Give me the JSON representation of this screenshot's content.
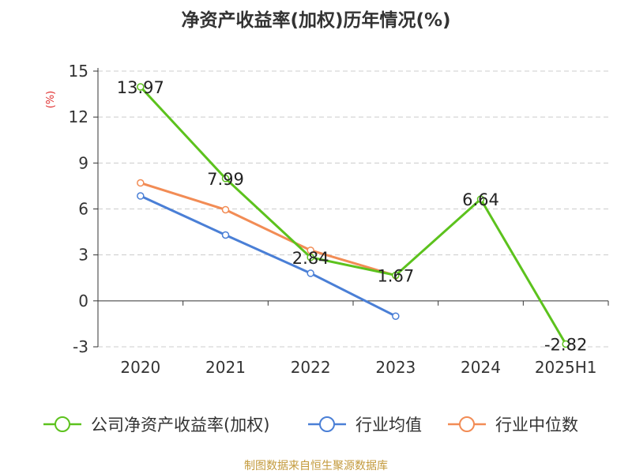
{
  "chart_data": {
    "type": "line",
    "title": "净资产收益率(加权)历年情况(%)",
    "ylabel": "(%)",
    "categories": [
      "2020",
      "2021",
      "2022",
      "2023",
      "2024",
      "2025H1"
    ],
    "yticks": [
      "15",
      "12",
      "9",
      "6",
      "3",
      "0",
      "-3"
    ],
    "ylim": [
      -3,
      15
    ],
    "grid": true,
    "legend_position": "bottom",
    "series": [
      {
        "name": "公司净资产收益率(加权)",
        "color": "#5cc21d",
        "values": [
          13.97,
          7.99,
          2.84,
          1.67,
          6.64,
          -2.82
        ],
        "labels": [
          "13.97",
          "7.99",
          "2.84",
          "1.67",
          "6.64",
          "-2.82"
        ]
      },
      {
        "name": "行业均值",
        "color": "#4a7fd6",
        "values": [
          6.85,
          4.3,
          1.8,
          -1.0,
          null,
          null
        ]
      },
      {
        "name": "行业中位数",
        "color": "#f28c55",
        "values": [
          7.7,
          5.95,
          3.3,
          1.65,
          null,
          null
        ]
      }
    ],
    "source": "制图数据来自恒生聚源数据库",
    "source_color": "#c39a3c",
    "ylabel_color": "#e03030"
  }
}
